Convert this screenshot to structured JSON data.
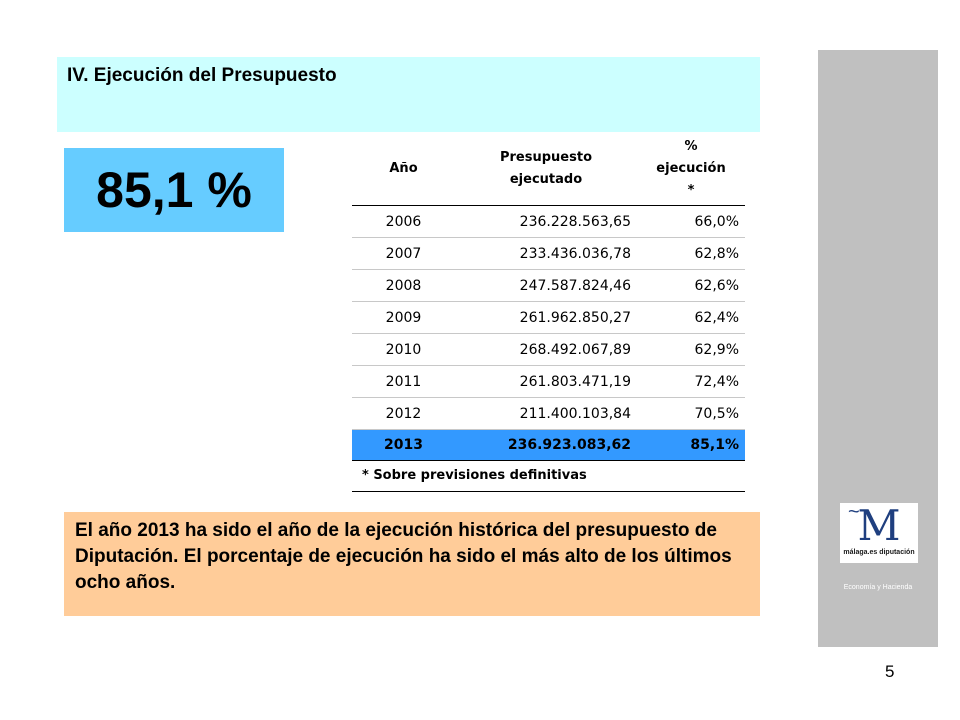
{
  "title": "IV. Ejecución del Presupuesto",
  "highlight_value": "85,1 %",
  "table": {
    "headers": {
      "year": "Año",
      "budget_line1": "Presupuesto",
      "budget_line2": "ejecutado",
      "pct_line1": "%",
      "pct_line2": "ejecución",
      "pct_line3": "*"
    },
    "rows": [
      {
        "year": "2006",
        "value": "236.228.563,65",
        "pct": "66,0%"
      },
      {
        "year": "2007",
        "value": "233.436.036,78",
        "pct": "62,8%"
      },
      {
        "year": "2008",
        "value": "247.587.824,46",
        "pct": "62,6%"
      },
      {
        "year": "2009",
        "value": "261.962.850,27",
        "pct": "62,4%"
      },
      {
        "year": "2010",
        "value": "268.492.067,89",
        "pct": "62,9%"
      },
      {
        "year": "2011",
        "value": "261.803.471,19",
        "pct": "72,4%"
      },
      {
        "year": "2012",
        "value": "211.400.103,84",
        "pct": "70,5%"
      },
      {
        "year": "2013",
        "value": "236.923.083,62",
        "pct": "85,1%"
      }
    ],
    "footnote": "* Sobre previsiones definitivas"
  },
  "note": "El año 2013 ha sido el año de la ejecución histórica del presupuesto de Diputación. El porcentaje de ejecución ha sido el más alto de los últimos ocho años.",
  "sidebar": {
    "logo_letter": "M",
    "logo_caption": "málaga.es diputación",
    "label": "Economía y Hacienda"
  },
  "page_number": "5",
  "colors": {
    "title_bg": "#ccffff",
    "highlight_bg": "#66ccff",
    "highlight_row_bg": "#3399ff",
    "note_bg": "#ffcc99",
    "sidebar_bg": "#c0c0c0"
  }
}
